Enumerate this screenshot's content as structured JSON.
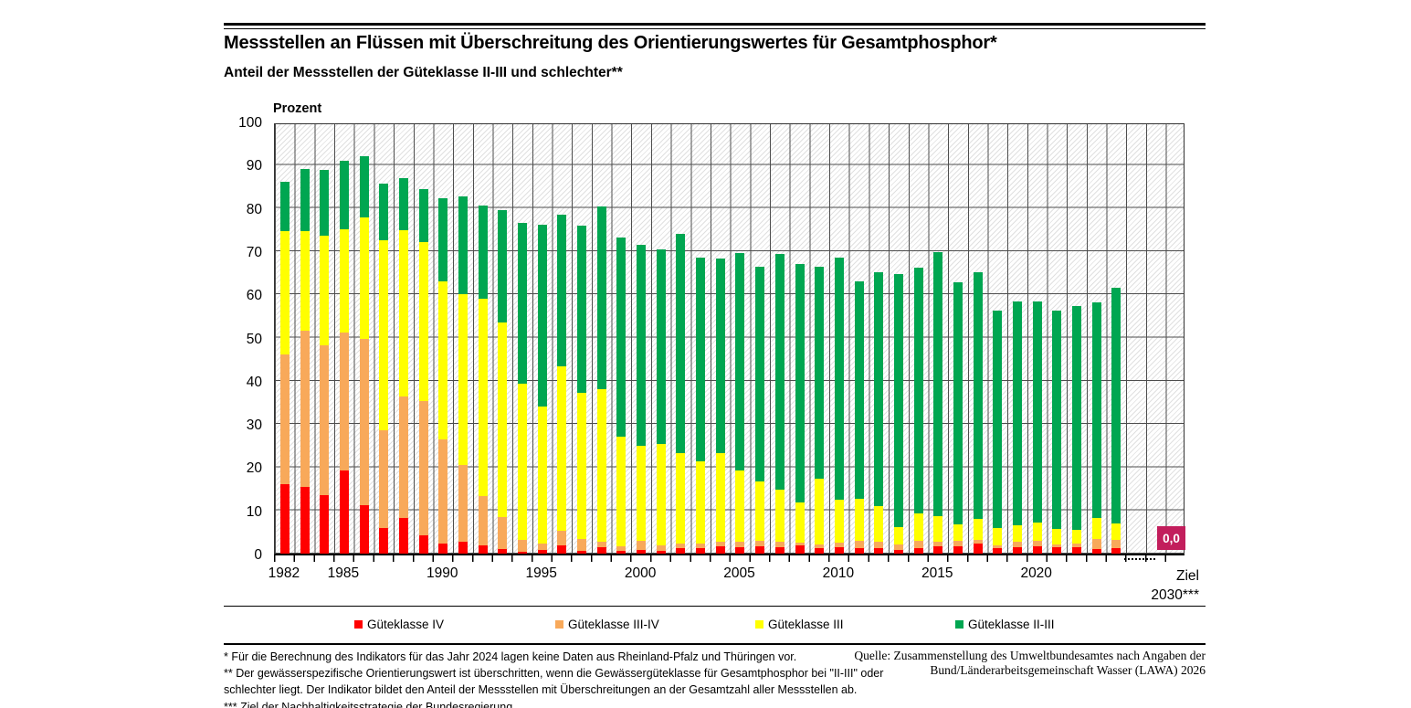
{
  "header": {
    "title": "Messstellen an Flüssen mit Überschreitung des Orientierungswertes für Gesamtphosphor*",
    "subtitle": "Anteil der Messstellen der Güteklasse II-III und schlechter**"
  },
  "chart": {
    "y_axis_title": "Prozent",
    "y_ticks": [
      0,
      10,
      20,
      30,
      40,
      50,
      60,
      70,
      80,
      90,
      100
    ],
    "x_tick_years": [
      1982,
      1985,
      1990,
      1995,
      2000,
      2005,
      2010,
      2015,
      2020
    ],
    "target": {
      "label_line1": "Ziel",
      "label_line2": "2030***",
      "value_label": "0,0",
      "box_color": "#C21E5C"
    }
  },
  "legend": {
    "items": [
      {
        "label": "Güteklasse IV",
        "color": "#FF0000"
      },
      {
        "label": "Güteklasse III-IV",
        "color": "#F8A95A"
      },
      {
        "label": "Güteklasse III",
        "color": "#FFFF00"
      },
      {
        "label": "Güteklasse II-III",
        "color": "#00A651"
      }
    ]
  },
  "footnotes": [
    "* Für die Berechnung des Indikators für das Jahr 2024 lagen keine Daten aus Rheinland-Pfalz und Thüringen vor.",
    "** Der gewässerspezifische Orientierungswert ist überschritten, wenn die Gewässergüteklasse für Gesamtphosphor bei \"II-III\" oder",
    "schlechter liegt. Der Indikator bildet den Anteil der Messstellen mit Überschreitungen an der Gesamtzahl aller Messstellen ab.",
    "*** Ziel der Nachhaltigkeitsstrategie der Bundesregierung"
  ],
  "source": {
    "line1": "Quelle: Zusammenstellung des Umweltbundesamtes nach Angaben der",
    "line2": "Bund/Länderarbeitsgemeinschaft Wasser (LAWA) 2026"
  },
  "chart_data": {
    "type": "bar",
    "stacked": true,
    "title": "Messstellen an Flüssen mit Überschreitung des Orientierungswertes für Gesamtphosphor*",
    "subtitle": "Anteil der Messstellen der Güteklasse II-III und schlechter**",
    "xlabel": "",
    "ylabel": "Prozent",
    "ylim": [
      0,
      100
    ],
    "grid": true,
    "legend_position": "bottom",
    "categories": [
      1982,
      1983,
      1984,
      1985,
      1986,
      1987,
      1988,
      1989,
      1990,
      1991,
      1992,
      1993,
      1994,
      1995,
      1996,
      1997,
      1998,
      1999,
      2000,
      2001,
      2002,
      2003,
      2004,
      2005,
      2006,
      2007,
      2008,
      2009,
      2010,
      2011,
      2012,
      2013,
      2014,
      2015,
      2016,
      2017,
      2018,
      2019,
      2020,
      2021,
      2022,
      2023,
      2024
    ],
    "series": [
      {
        "name": "Güteklasse IV",
        "color": "#FF0000",
        "values": [
          16.0,
          15.5,
          13.5,
          19.3,
          11.2,
          5.9,
          8.2,
          4.2,
          2.4,
          2.7,
          2.0,
          1.0,
          0.5,
          0.8,
          2.0,
          0.6,
          1.5,
          0.6,
          0.8,
          0.6,
          1.2,
          1.3,
          1.7,
          1.5,
          1.7,
          1.5,
          2.0,
          1.2,
          1.5,
          1.3,
          1.2,
          0.9,
          1.3,
          1.7,
          1.7,
          2.3,
          1.3,
          1.5,
          1.7,
          1.5,
          1.5,
          1.1,
          1.3
        ]
      },
      {
        "name": "Güteklasse III-IV",
        "color": "#F8A95A",
        "values": [
          30.0,
          36.0,
          34.7,
          31.9,
          38.5,
          22.6,
          28.2,
          31.1,
          24.1,
          17.8,
          11.4,
          7.4,
          2.6,
          1.5,
          3.2,
          2.7,
          1.2,
          1.1,
          2.1,
          1.4,
          1.2,
          1.1,
          1.0,
          1.3,
          1.3,
          1.3,
          0.6,
          1.0,
          1.0,
          1.6,
          1.6,
          1.2,
          1.7,
          1.0,
          1.3,
          0.9,
          0.7,
          1.2,
          1.3,
          0.7,
          0.9,
          2.3,
          1.8
        ]
      },
      {
        "name": "Güteklasse III",
        "color": "#FFFF00",
        "values": [
          28.7,
          23.2,
          25.4,
          23.9,
          28.1,
          44.0,
          38.4,
          36.9,
          36.5,
          39.5,
          45.6,
          45.1,
          36.3,
          31.7,
          38.2,
          33.9,
          35.4,
          25.4,
          22.1,
          23.4,
          20.9,
          18.9,
          20.5,
          16.5,
          13.8,
          12.1,
          9.3,
          15.1,
          10.0,
          9.7,
          8.3,
          4.0,
          6.4,
          5.9,
          3.8,
          4.8,
          4.0,
          3.8,
          4.2,
          3.6,
          3.2,
          4.8,
          3.9
        ]
      },
      {
        "name": "Güteklasse II-III",
        "color": "#00A651",
        "values": [
          11.3,
          14.3,
          15.1,
          15.9,
          14.1,
          13.2,
          12.0,
          12.1,
          19.2,
          22.6,
          21.6,
          26.0,
          37.2,
          42.2,
          35.0,
          38.8,
          42.2,
          46.1,
          46.4,
          44.9,
          50.6,
          47.2,
          45.0,
          50.3,
          49.5,
          54.5,
          55.2,
          49.1,
          55.9,
          50.4,
          54.1,
          58.5,
          56.8,
          61.1,
          56.1,
          57.2,
          50.3,
          51.8,
          51.1,
          50.5,
          51.6,
          50.0,
          54.5
        ]
      }
    ],
    "annotations": [
      {
        "category": "Ziel 2030***",
        "value": 0.0,
        "label": "0,0"
      }
    ]
  }
}
